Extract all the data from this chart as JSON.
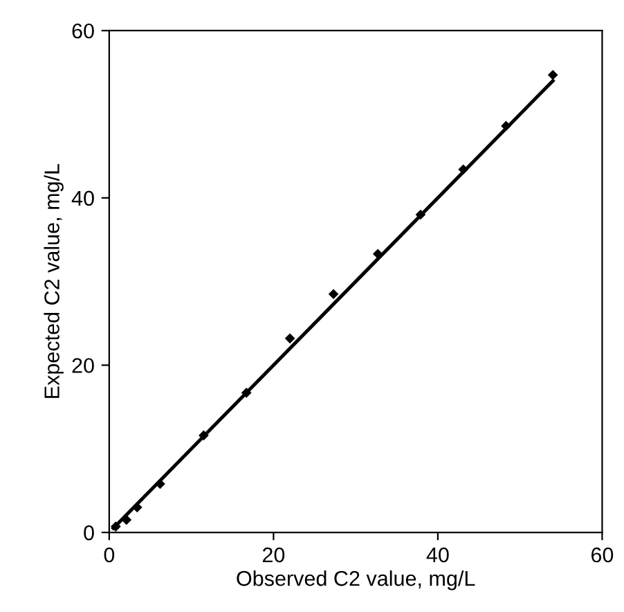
{
  "chart_data": {
    "type": "scatter",
    "xlabel": "Observed C2 value, mg/L",
    "ylabel": "Expected C2 value, mg/L",
    "xlim": [
      0,
      60
    ],
    "ylim": [
      0,
      60
    ],
    "xticks": [
      0,
      20,
      40,
      60
    ],
    "yticks": [
      0,
      20,
      40,
      60
    ],
    "grid": false,
    "legend": false,
    "series": [
      {
        "color": "#000000",
        "marker": "diamond",
        "x": [
          0.8,
          2.1,
          3.4,
          6.2,
          11.5,
          16.7,
          22.0,
          27.3,
          32.7,
          37.9,
          43.1,
          48.3,
          54.0
        ],
        "values": [
          0.7,
          1.5,
          3.0,
          5.8,
          11.6,
          16.7,
          23.2,
          28.5,
          33.3,
          38.0,
          43.4,
          48.6,
          54.7
        ]
      },
      {
        "type": "line",
        "color": "#000000",
        "marker": "none",
        "line_style": "solid",
        "x": [
          0.5,
          54.0
        ],
        "values": [
          0.5,
          54.0
        ]
      }
    ]
  }
}
